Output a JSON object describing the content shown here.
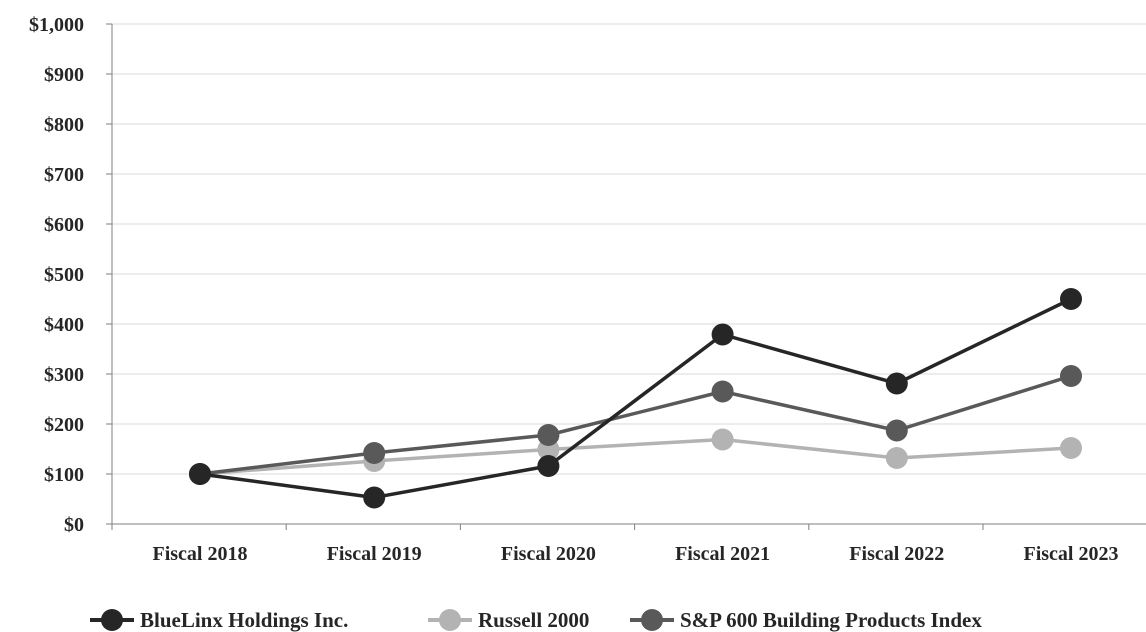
{
  "chart_data": {
    "type": "line",
    "categories": [
      "Fiscal 2018",
      "Fiscal 2019",
      "Fiscal 2020",
      "Fiscal 2021",
      "Fiscal 2022",
      "Fiscal 2023"
    ],
    "series": [
      {
        "name": "BlueLinx Holdings Inc.",
        "values": [
          100,
          53,
          116,
          379,
          281,
          450
        ],
        "color": "#262626"
      },
      {
        "name": "Russell 2000",
        "values": [
          100,
          126,
          149,
          169,
          132,
          152
        ],
        "color": "#b3b3b3"
      },
      {
        "name": "S&P 600 Building Products Index",
        "values": [
          100,
          142,
          178,
          265,
          187,
          296
        ],
        "color": "#595959"
      }
    ],
    "ylim": [
      0,
      1000
    ],
    "yticks": [
      0,
      100,
      200,
      300,
      400,
      500,
      600,
      700,
      800,
      900,
      1000
    ],
    "ytick_labels": [
      "$0",
      "$100",
      "$200",
      "$300",
      "$400",
      "$500",
      "$600",
      "$700",
      "$800",
      "$900",
      "$1,000"
    ],
    "grid": true,
    "legend_position": "bottom"
  }
}
